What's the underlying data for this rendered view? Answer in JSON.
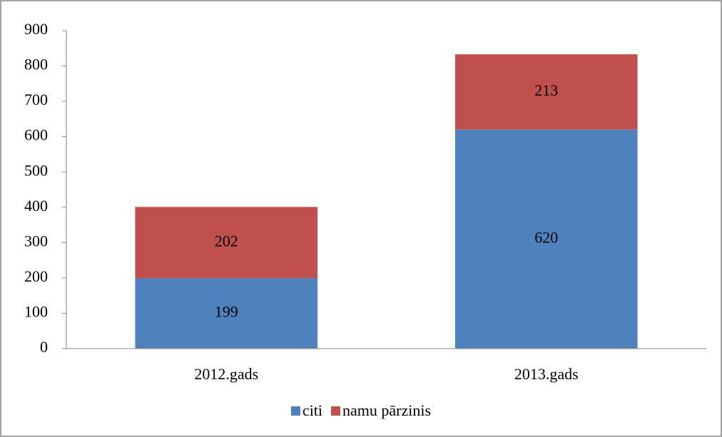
{
  "chart_data": {
    "type": "stacked_bar",
    "categories": [
      "2012.gads",
      "2013.gads"
    ],
    "series": [
      {
        "name": "citi",
        "color": "#4f81bd",
        "values": [
          199,
          620
        ]
      },
      {
        "name": "namu pārzinis",
        "color": "#c0504d",
        "values": [
          202,
          213
        ]
      }
    ],
    "ylim": [
      0,
      900
    ],
    "yticks": [
      0,
      100,
      200,
      300,
      400,
      500,
      600,
      700,
      800,
      900
    ],
    "grid": false,
    "legend": "bottom"
  }
}
